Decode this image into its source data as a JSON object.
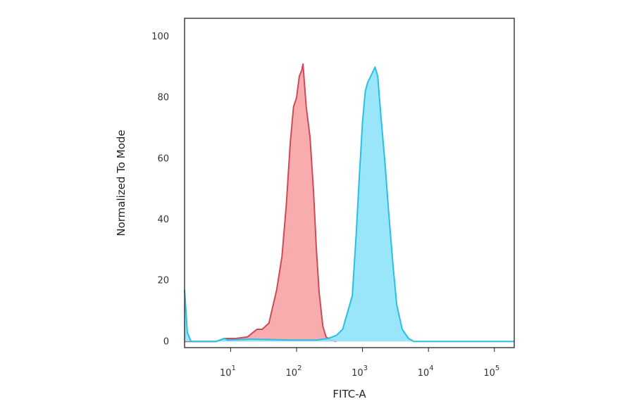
{
  "chart_data": {
    "type": "area",
    "title": "",
    "xlabel": "FITC-A",
    "ylabel": "Normalized To Mode",
    "x_scale": "log",
    "xlim": [
      2,
      200000
    ],
    "ylim": [
      -2,
      106
    ],
    "grid": false,
    "legend": "none",
    "y_ticks": [
      0,
      20,
      40,
      60,
      80,
      100
    ],
    "y_tick_labels": [
      "0",
      "20",
      "40",
      "60",
      "80",
      "100"
    ],
    "x_ticks": [
      10,
      100,
      1000,
      10000,
      100000
    ],
    "x_tick_labels": [
      {
        "base": "10",
        "exp": "1"
      },
      {
        "base": "10",
        "exp": "2"
      },
      {
        "base": "10",
        "exp": "3"
      },
      {
        "base": "10",
        "exp": "4"
      },
      {
        "base": "10",
        "exp": "5"
      }
    ],
    "series": [
      {
        "color_fill": "#f8a3a5",
        "color_line": "#cf4a55",
        "points": [
          [
            2,
            0
          ],
          [
            6,
            0
          ],
          [
            8,
            1
          ],
          [
            12,
            1
          ],
          [
            18,
            1.5
          ],
          [
            25,
            4
          ],
          [
            30,
            4
          ],
          [
            38,
            6
          ],
          [
            50,
            17
          ],
          [
            60,
            28
          ],
          [
            70,
            45
          ],
          [
            80,
            65
          ],
          [
            90,
            77
          ],
          [
            100,
            80
          ],
          [
            110,
            87
          ],
          [
            120,
            89
          ],
          [
            125,
            91
          ],
          [
            140,
            77
          ],
          [
            160,
            67
          ],
          [
            180,
            50
          ],
          [
            200,
            30
          ],
          [
            220,
            16
          ],
          [
            250,
            5
          ],
          [
            280,
            1.5
          ],
          [
            330,
            0.5
          ],
          [
            400,
            0
          ]
        ]
      },
      {
        "color_fill": "#8ee2f8",
        "color_line": "#28c0e4",
        "points": [
          [
            2,
            17
          ],
          [
            2.1,
            10
          ],
          [
            2.2,
            3
          ],
          [
            2.5,
            0
          ],
          [
            6,
            0
          ],
          [
            8,
            1
          ],
          [
            9,
            0.5
          ],
          [
            20,
            0.8
          ],
          [
            80,
            0.5
          ],
          [
            200,
            0.5
          ],
          [
            300,
            1
          ],
          [
            400,
            2
          ],
          [
            500,
            4
          ],
          [
            700,
            15
          ],
          [
            800,
            35
          ],
          [
            900,
            55
          ],
          [
            1000,
            72
          ],
          [
            1100,
            82
          ],
          [
            1200,
            85
          ],
          [
            1400,
            88
          ],
          [
            1550,
            90
          ],
          [
            1700,
            87
          ],
          [
            1900,
            74
          ],
          [
            2200,
            58
          ],
          [
            2500,
            42
          ],
          [
            2900,
            25
          ],
          [
            3300,
            12
          ],
          [
            4000,
            4
          ],
          [
            5000,
            1
          ],
          [
            6000,
            0
          ],
          [
            200000,
            0
          ]
        ]
      }
    ]
  }
}
